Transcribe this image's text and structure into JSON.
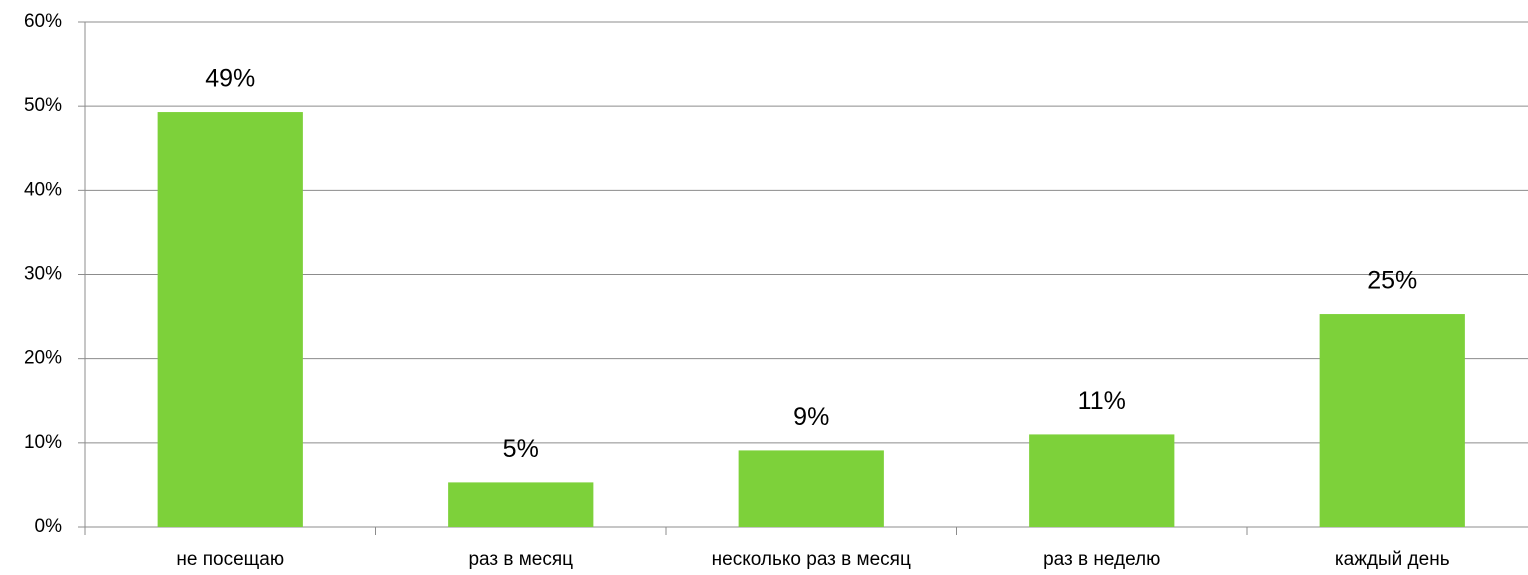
{
  "chart_data": {
    "type": "bar",
    "categories": [
      "не посещаю",
      "раз в месяц",
      "несколько раз в месяц",
      "раз в неделю",
      "каждый день"
    ],
    "values": [
      49.3,
      5.3,
      9.1,
      11.0,
      25.3
    ],
    "value_labels": [
      "49%",
      "5%",
      "9%",
      "11%",
      "25%"
    ],
    "color": "#7dd13a",
    "ylim": [
      0,
      60
    ],
    "yticks": [
      {
        "value": 0,
        "label": "0%"
      },
      {
        "value": 10,
        "label": "10%"
      },
      {
        "value": 20,
        "label": "20%"
      },
      {
        "value": 30,
        "label": "30%"
      },
      {
        "value": 40,
        "label": "40%"
      },
      {
        "value": 50,
        "label": "50%"
      },
      {
        "value": 60,
        "label": "60%"
      }
    ],
    "grid": true
  }
}
